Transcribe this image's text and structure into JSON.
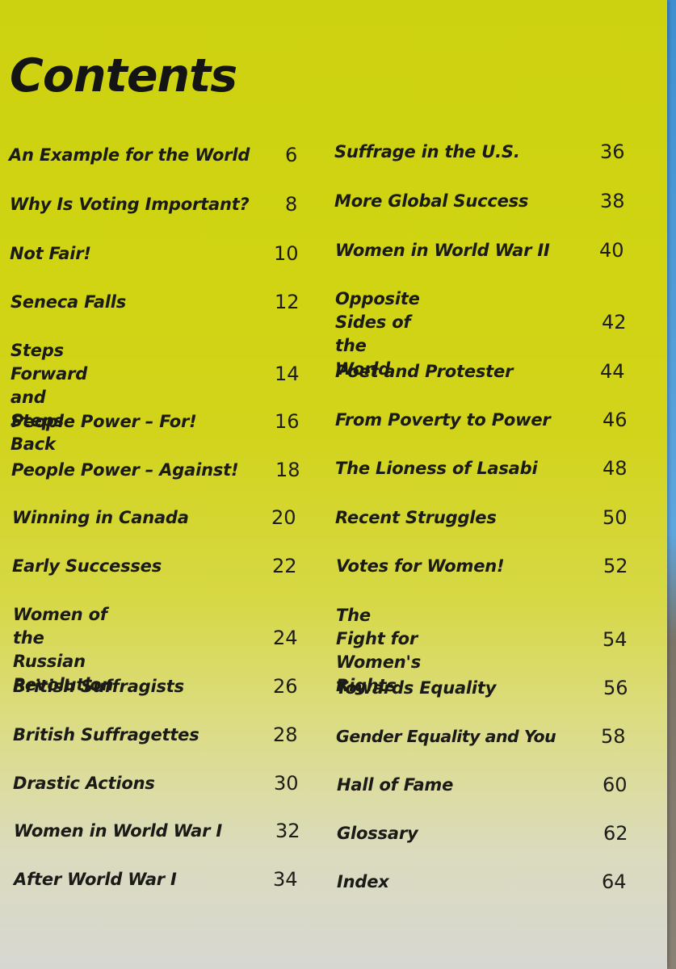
{
  "title": "Contents",
  "left_column": [
    {
      "title": "An Example for the World",
      "page": "6"
    },
    {
      "title": "Why Is Voting Important?",
      "page": "8"
    },
    {
      "title": "Not Fair!",
      "page": "10"
    },
    {
      "title": "Seneca Falls",
      "page": "12"
    },
    {
      "title": "Steps Forward and\nSteps Back",
      "page": "14"
    },
    {
      "title": "People Power – For!",
      "page": "16"
    },
    {
      "title": "People Power – Against!",
      "page": "18"
    },
    {
      "title": "Winning in Canada",
      "page": "20"
    },
    {
      "title": "Early Successes",
      "page": "22"
    },
    {
      "title": "Women of the Russian\nRevolution",
      "page": "24"
    },
    {
      "title": "British Suffragists",
      "page": "26"
    },
    {
      "title": "British Suffragettes",
      "page": "28"
    },
    {
      "title": "Drastic Actions",
      "page": "30"
    },
    {
      "title": "Women in World War I",
      "page": "32"
    },
    {
      "title": "After World War I",
      "page": "34"
    }
  ],
  "right_column": [
    {
      "title": "Suffrage in the U.S.",
      "page": "36"
    },
    {
      "title": "More Global Success",
      "page": "38"
    },
    {
      "title": "Women in World War II",
      "page": "40"
    },
    {
      "title": "Opposite Sides of the\nWorld",
      "page": "42"
    },
    {
      "title": "Poet and Protester",
      "page": "44"
    },
    {
      "title": "From Poverty to Power",
      "page": "46"
    },
    {
      "title": "The Lioness of Lasabi",
      "page": "48"
    },
    {
      "title": "Recent Struggles",
      "page": "50"
    },
    {
      "title": "Votes for Women!",
      "page": "52"
    },
    {
      "title": "The Fight for Women's\nRights",
      "page": "54"
    },
    {
      "title": "Towards Equality",
      "page": "56"
    },
    {
      "title": "Gender Equality and You",
      "page": "58"
    },
    {
      "title": "Hall of Fame",
      "page": "60"
    },
    {
      "title": "Glossary",
      "page": "62"
    },
    {
      "title": "Index",
      "page": "64"
    }
  ]
}
